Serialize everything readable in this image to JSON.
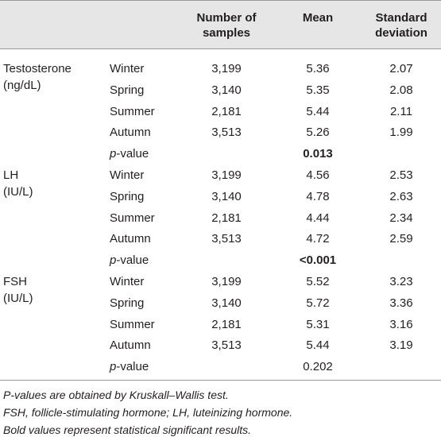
{
  "table": {
    "header": [
      "Number of samples",
      "Mean",
      "Standard deviation"
    ],
    "groups": [
      {
        "name": "Testosterone",
        "unit": "(ng/dL)",
        "rows": [
          [
            "Winter",
            "3,199",
            "5.36",
            "2.07"
          ],
          [
            "Spring",
            "3,140",
            "5.35",
            "2.08"
          ],
          [
            "Summer",
            "2,181",
            "5.44",
            "2.11"
          ],
          [
            "Autumn",
            "3,513",
            "5.26",
            "1.99"
          ]
        ],
        "p_label": [
          "p",
          "-value"
        ],
        "p_value": "0.013",
        "p_bold": true
      },
      {
        "name": "LH",
        "unit": "(IU/L)",
        "rows": [
          [
            "Winter",
            "3,199",
            "4.56",
            "2.53"
          ],
          [
            "Spring",
            "3,140",
            "4.78",
            "2.63"
          ],
          [
            "Summer",
            "2,181",
            "4.44",
            "2.34"
          ],
          [
            "Autumn",
            "3,513",
            "4.72",
            "2.59"
          ]
        ],
        "p_label": [
          "p",
          "-value"
        ],
        "p_value": "<0.001",
        "p_bold": true
      },
      {
        "name": "FSH",
        "unit": "(IU/L)",
        "rows": [
          [
            "Winter",
            "3,199",
            "5.52",
            "3.23"
          ],
          [
            "Spring",
            "3,140",
            "5.72",
            "3.36"
          ],
          [
            "Summer",
            "2,181",
            "5.31",
            "3.16"
          ],
          [
            "Autumn",
            "3,513",
            "5.44",
            "3.19"
          ]
        ],
        "p_label": [
          "p",
          "-value"
        ],
        "p_value": "0.202",
        "p_bold": false
      }
    ],
    "notes": [
      "P-values are obtained by Kruskall–Wallis test.",
      "FSH, follicle-stimulating hormone; LH, luteinizing hormone.",
      "Bold values represent statistical significant results."
    ]
  }
}
